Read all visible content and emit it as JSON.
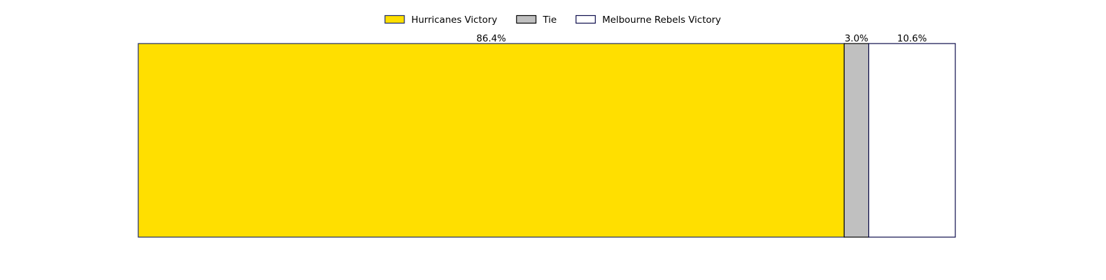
{
  "chart_data": {
    "type": "bar",
    "orientation": "horizontal",
    "stacked": true,
    "normalized": true,
    "title": "",
    "xlabel": "",
    "ylabel": "",
    "xlim": [
      0,
      100
    ],
    "grid": false,
    "legend_position": "top-center",
    "categories": [
      ""
    ],
    "series": [
      {
        "name": "Hurricanes Victory",
        "values": [
          86.4
        ],
        "label": "86.4%",
        "color": "#FFDF00",
        "edge_color": "#1a2a6c"
      },
      {
        "name": "Tie",
        "values": [
          3.0
        ],
        "label": "3.0%",
        "color": "#C0C0C0",
        "edge_color": "#000000"
      },
      {
        "name": "Melbourne Rebels Victory",
        "values": [
          10.6
        ],
        "label": "10.6%",
        "color": "#FFFFFF",
        "edge_color": "#0b0b4a"
      }
    ]
  }
}
